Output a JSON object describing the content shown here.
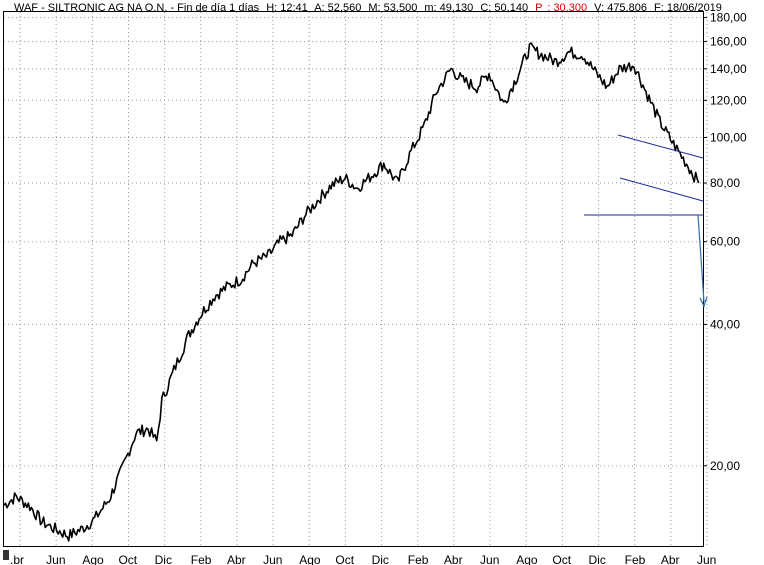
{
  "header": {
    "title": "WAF - SILTRONIC AG NA O.N. - Fin de día 1 días",
    "h": "H: 12:41",
    "a": "A: 52,560",
    "m_high": "M: 53,500",
    "m_low": "m: 49,130",
    "c": "C: 50,140",
    "p_label": "P",
    "p_value": ": 30,300",
    "v": "V: 475.806",
    "f": "F: 18/06/2019"
  },
  "chart_data": {
    "type": "line",
    "scale": "log",
    "ylim": [
      13.5,
      185
    ],
    "y_ticks": [
      {
        "v": 20,
        "label": "20,00"
      },
      {
        "v": 40,
        "label": "40,00"
      },
      {
        "v": 60,
        "label": "60,00"
      },
      {
        "v": 80,
        "label": "80,00"
      },
      {
        "v": 100,
        "label": "100,00"
      },
      {
        "v": 120,
        "label": "120,00"
      },
      {
        "v": 140,
        "label": "140,00"
      },
      {
        "v": 160,
        "label": "160,00"
      },
      {
        "v": 180,
        "label": "180,00"
      }
    ],
    "x_ticks": [
      ".br",
      "Jun",
      "Ago",
      "Oct",
      "Dic",
      "Feb",
      "Abr",
      "Jun",
      "Ago",
      "Oct",
      "Dic",
      "Feb",
      "Abr",
      "Jun",
      "Ago",
      "Oct",
      "Dic",
      "Feb",
      "Abr",
      "Jun"
    ],
    "x_range": [
      "2017-04",
      "2019-06"
    ],
    "series": [
      {
        "points": [
          [
            "2017-04-01",
            16.5
          ],
          [
            "2017-04-15",
            17.2
          ],
          [
            "2017-05-01",
            16.4
          ],
          [
            "2017-05-15",
            15.2
          ],
          [
            "2017-06-01",
            14.6
          ],
          [
            "2017-06-15",
            14.2
          ],
          [
            "2017-07-01",
            14.7
          ],
          [
            "2017-07-15",
            15.4
          ],
          [
            "2017-08-01",
            17.0
          ],
          [
            "2017-08-15",
            19.5
          ],
          [
            "2017-09-01",
            23.5
          ],
          [
            "2017-09-15",
            24.0
          ],
          [
            "2017-09-25",
            22.5
          ],
          [
            "2017-10-01",
            27.5
          ],
          [
            "2017-10-15",
            32.0
          ],
          [
            "2017-11-01",
            38.0
          ],
          [
            "2017-11-15",
            42.0
          ],
          [
            "2017-12-01",
            46.0
          ],
          [
            "2017-12-15",
            48.0
          ],
          [
            "2018-01-01",
            50.0
          ],
          [
            "2018-01-15",
            54.0
          ],
          [
            "2018-02-01",
            56.0
          ],
          [
            "2018-02-15",
            60.0
          ],
          [
            "2018-03-01",
            62.0
          ],
          [
            "2018-03-15",
            68.0
          ],
          [
            "2018-04-01",
            74.0
          ],
          [
            "2018-04-15",
            79.0
          ],
          [
            "2018-05-01",
            82.0
          ],
          [
            "2018-05-15",
            78.0
          ],
          [
            "2018-06-01",
            83.0
          ],
          [
            "2018-06-15",
            88.0
          ],
          [
            "2018-07-01",
            80.0
          ],
          [
            "2018-07-15",
            92.0
          ],
          [
            "2018-08-01",
            106.0
          ],
          [
            "2018-08-15",
            125.0
          ],
          [
            "2018-09-01",
            140.0
          ],
          [
            "2018-09-15",
            132.0
          ],
          [
            "2018-10-01",
            128.0
          ],
          [
            "2018-10-15",
            137.0
          ],
          [
            "2018-11-01",
            118.0
          ],
          [
            "2018-11-15",
            133.0
          ],
          [
            "2018-12-01",
            155.0
          ],
          [
            "2018-12-15",
            150.0
          ],
          [
            "2019-01-01",
            145.0
          ],
          [
            "2019-01-15",
            152.0
          ],
          [
            "2019-02-01",
            150.0
          ],
          [
            "2019-02-15",
            138.0
          ],
          [
            "2019-03-01",
            128.0
          ],
          [
            "2019-03-15",
            140.0
          ],
          [
            "2019-04-01",
            143.0
          ],
          [
            "2019-04-15",
            125.0
          ],
          [
            "2019-05-01",
            108.0
          ],
          [
            "2019-05-15",
            98.0
          ],
          [
            "2019-06-01",
            88.0
          ],
          [
            "2019-06-15",
            80.0
          ]
        ]
      }
    ]
  }
}
